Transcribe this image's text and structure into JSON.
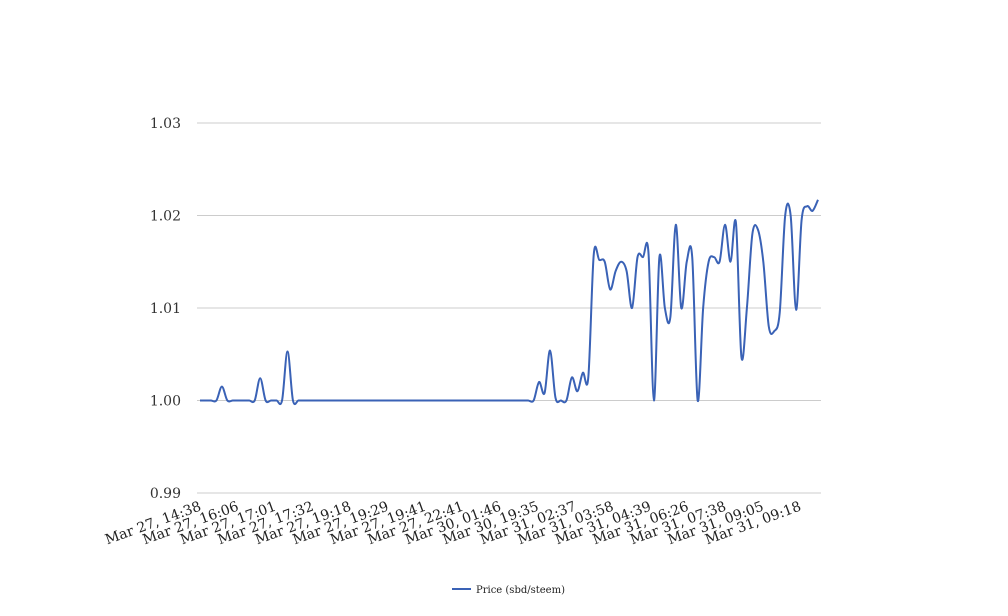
{
  "chart_data": {
    "type": "line",
    "title": "",
    "xlabel": "",
    "ylabel": "",
    "ylim": [
      0.99,
      1.03
    ],
    "yticks": [
      "0.99",
      "1.00",
      "1.01",
      "1.02",
      "1.03"
    ],
    "grid": true,
    "legend_position": "bottom-center",
    "series_color": "#3a62b6",
    "grid_color": "#cccccc",
    "xticks": [
      "Mar 27, 14:38",
      "Mar 27, 16:06",
      "Mar 27, 17:01",
      "Mar 27, 17:32",
      "Mar 27, 19:18",
      "Mar 27, 19:29",
      "Mar 27, 19:41",
      "Mar 27, 22:41",
      "Mar 30, 01:46",
      "Mar 30, 19:35",
      "Mar 31, 02:37",
      "Mar 31, 03:58",
      "Mar 31, 04:39",
      "Mar 31, 06:26",
      "Mar 31, 07:38",
      "Mar 31, 09:05",
      "Mar 31, 09:18"
    ],
    "series": [
      {
        "name": "Price (sbd/steem)",
        "values": [
          1.0,
          1.0,
          1.0,
          1.0,
          1.0015,
          1.0,
          1.0,
          1.0,
          1.0,
          1.0,
          1.0,
          1.0024,
          1.0,
          1.0,
          1.0,
          1.0,
          1.0053,
          1.0,
          1.0,
          1.0,
          1.0,
          1.0,
          1.0,
          1.0,
          1.0,
          1.0,
          1.0,
          1.0,
          1.0,
          1.0,
          1.0,
          1.0,
          1.0,
          1.0,
          1.0,
          1.0,
          1.0,
          1.0,
          1.0,
          1.0,
          1.0,
          1.0,
          1.0,
          1.0,
          1.0,
          1.0,
          1.0,
          1.0,
          1.0,
          1.0,
          1.0,
          1.0,
          1.0,
          1.0,
          1.0,
          1.0,
          1.0,
          1.0,
          1.0,
          1.0,
          1.0,
          1.0,
          1.002,
          1.0008,
          1.0054,
          1.0003,
          1.0,
          1.0,
          1.0025,
          1.001,
          1.003,
          1.0025,
          1.0158,
          1.0152,
          1.015,
          1.012,
          1.014,
          1.015,
          1.014,
          1.01,
          1.0155,
          1.0155,
          1.016,
          1.0,
          1.0155,
          1.01,
          1.009,
          1.019,
          1.01,
          1.015,
          1.0155,
          1.0,
          1.01,
          1.015,
          1.0155,
          1.015,
          1.019,
          1.015,
          1.0192,
          1.0047,
          1.01,
          1.018,
          1.0185,
          1.015,
          1.008,
          1.0075,
          1.0095,
          1.02,
          1.02,
          1.0098,
          1.0195,
          1.021,
          1.0205,
          1.0217
        ]
      }
    ]
  }
}
